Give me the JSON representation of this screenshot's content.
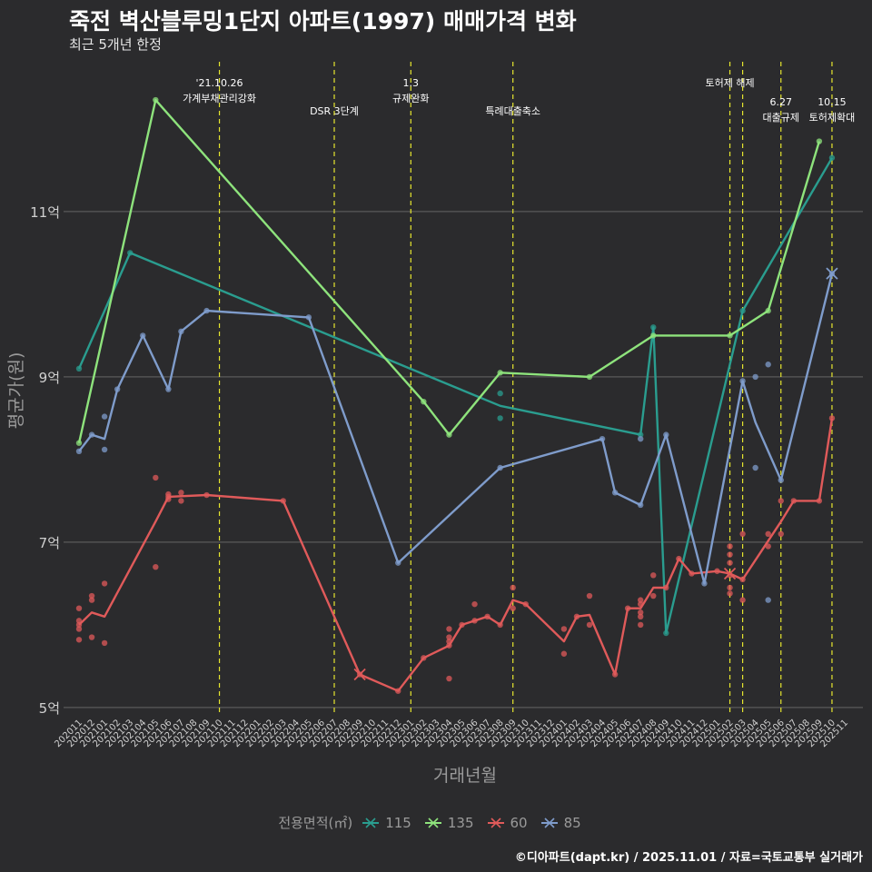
{
  "title": "죽전 벽산블루밍1단지 아파트(1997) 매매가격 변화",
  "subtitle": "최근 5개년 한정",
  "caption": "©디아파트(dapt.kr) / 2025.11.01 / 자료=국토교통부 실거래가",
  "chart_data": {
    "type": "line",
    "title": "죽전 벽산블루밍1단지 아파트(1997) 매매가격 변화",
    "xlabel": "거래년월",
    "ylabel": "평균가(원)",
    "x": [
      "202011",
      "202012",
      "202101",
      "202102",
      "202103",
      "202104",
      "202105",
      "202106",
      "202107",
      "202108",
      "202109",
      "202110",
      "202111",
      "202112",
      "202201",
      "202202",
      "202203",
      "202204",
      "202205",
      "202206",
      "202207",
      "202208",
      "202209",
      "202210",
      "202211",
      "202212",
      "202301",
      "202302",
      "202303",
      "202304",
      "202305",
      "202306",
      "202307",
      "202308",
      "202309",
      "202310",
      "202311",
      "202312",
      "202401",
      "202402",
      "202403",
      "202404",
      "202405",
      "202406",
      "202407",
      "202408",
      "202409",
      "202410",
      "202411",
      "202412",
      "202501",
      "202502",
      "202503",
      "202504",
      "202505",
      "202506",
      "202507",
      "202508",
      "202509",
      "202510",
      "202511"
    ],
    "ylim": [
      4.9,
      12.9
    ],
    "yticks": [
      5,
      7,
      9,
      11
    ],
    "ytick_labels": [
      "5억",
      "7억",
      "9억",
      "11억"
    ],
    "legend_title": "전용면적(㎡)",
    "series": [
      {
        "name": "115",
        "color": "#2a9d8f",
        "x": [
          "202011",
          "202103",
          "202308",
          "202407",
          "202408",
          "202409",
          "202503",
          "202510"
        ],
        "values": [
          9.1,
          10.5,
          8.65,
          8.3,
          9.6,
          5.9,
          9.8,
          11.65
        ],
        "points_x": [
          "202011",
          "202103",
          "202308",
          "202308",
          "202407",
          "202408",
          "202409",
          "202503",
          "202510"
        ],
        "points_y": [
          9.1,
          10.5,
          8.8,
          8.5,
          8.3,
          9.6,
          5.9,
          9.8,
          11.65
        ]
      },
      {
        "name": "135",
        "color": "#8ee37c",
        "x": [
          "202011",
          "202105",
          "202302",
          "202304",
          "202308",
          "202403",
          "202408",
          "202502",
          "202505",
          "202509"
        ],
        "values": [
          8.2,
          12.35,
          8.7,
          8.3,
          9.05,
          9.0,
          9.5,
          9.5,
          9.8,
          11.85
        ],
        "points_x": [
          "202011",
          "202105",
          "202302",
          "202304",
          "202308",
          "202403",
          "202408",
          "202502",
          "202505",
          "202509"
        ],
        "points_y": [
          8.2,
          12.35,
          8.7,
          8.3,
          9.05,
          9.0,
          9.5,
          9.5,
          9.8,
          11.85
        ]
      },
      {
        "name": "60",
        "color": "#e05a5a",
        "x": [
          "202011",
          "202012",
          "202101",
          "202105",
          "202106",
          "202109",
          "202203",
          "202209",
          "202212",
          "202302",
          "202304",
          "202305",
          "202307",
          "202308",
          "202309",
          "202310",
          "202401",
          "202402",
          "202403",
          "202405",
          "202406",
          "202407",
          "202408",
          "202409",
          "202410",
          "202411",
          "202501",
          "202502",
          "202503",
          "202506",
          "202507",
          "202509",
          "202510"
        ],
        "values": [
          6.0,
          6.15,
          6.1,
          7.25,
          7.55,
          7.57,
          7.5,
          5.4,
          5.2,
          5.6,
          5.75,
          6.0,
          6.1,
          6.0,
          6.3,
          6.25,
          5.8,
          6.1,
          6.12,
          5.4,
          6.2,
          6.2,
          6.45,
          6.45,
          6.8,
          6.62,
          6.65,
          6.62,
          6.55,
          7.25,
          7.5,
          7.5,
          8.5
        ],
        "points_x": [
          "202011",
          "202011",
          "202011",
          "202011",
          "202011",
          "202012",
          "202012",
          "202012",
          "202101",
          "202101",
          "202105",
          "202105",
          "202106",
          "202106",
          "202106",
          "202107",
          "202107",
          "202109",
          "202203",
          "202209",
          "202212",
          "202302",
          "202304",
          "202304",
          "202304",
          "202304",
          "202304",
          "202305",
          "202306",
          "202306",
          "202307",
          "202308",
          "202309",
          "202309",
          "202310",
          "202401",
          "202401",
          "202402",
          "202403",
          "202403",
          "202405",
          "202406",
          "202407",
          "202407",
          "202407",
          "202407",
          "202407",
          "202408",
          "202408",
          "202409",
          "202410",
          "202411",
          "202501",
          "202502",
          "202502",
          "202502",
          "202502",
          "202502",
          "202502",
          "202503",
          "202503",
          "202503",
          "202505",
          "202505",
          "202506",
          "202506",
          "202507",
          "202509",
          "202510"
        ],
        "points_y": [
          6.2,
          6.05,
          5.95,
          5.82,
          6.0,
          6.35,
          6.3,
          5.85,
          6.5,
          5.78,
          7.78,
          6.7,
          7.58,
          7.52,
          7.55,
          7.6,
          7.5,
          7.57,
          7.5,
          5.4,
          5.2,
          5.6,
          5.95,
          5.85,
          5.8,
          5.35,
          5.75,
          6.0,
          6.25,
          6.05,
          6.1,
          6.0,
          6.45,
          6.2,
          6.25,
          5.95,
          5.65,
          6.1,
          6.35,
          6.0,
          5.4,
          6.2,
          6.3,
          6.25,
          6.1,
          6.0,
          6.15,
          6.6,
          6.35,
          6.45,
          6.8,
          6.62,
          6.65,
          6.95,
          6.85,
          6.75,
          6.6,
          6.45,
          6.38,
          7.1,
          6.55,
          6.3,
          7.1,
          6.95,
          7.5,
          7.1,
          7.5,
          7.5,
          8.5
        ]
      },
      {
        "name": "85",
        "color": "#7f9ccb",
        "x": [
          "202011",
          "202012",
          "202101",
          "202102",
          "202104",
          "202106",
          "202107",
          "202109",
          "202205",
          "202212",
          "202308",
          "202404",
          "202405",
          "202407",
          "202409",
          "202412",
          "202503",
          "202504",
          "202506",
          "202510"
        ],
        "values": [
          8.1,
          8.3,
          8.25,
          8.85,
          9.5,
          8.85,
          9.55,
          9.8,
          9.72,
          6.75,
          7.9,
          8.25,
          7.6,
          7.45,
          8.3,
          6.5,
          8.95,
          8.45,
          7.75,
          10.25
        ],
        "points_x": [
          "202011",
          "202012",
          "202101",
          "202101",
          "202102",
          "202104",
          "202106",
          "202107",
          "202109",
          "202205",
          "202212",
          "202308",
          "202404",
          "202405",
          "202407",
          "202407",
          "202409",
          "202412",
          "202503",
          "202504",
          "202504",
          "202505",
          "202505",
          "202506",
          "202510"
        ],
        "points_y": [
          8.1,
          8.3,
          8.12,
          8.52,
          8.85,
          9.5,
          8.85,
          9.55,
          9.8,
          9.72,
          6.75,
          7.9,
          8.25,
          7.6,
          8.25,
          7.45,
          8.3,
          6.5,
          8.95,
          9.0,
          7.9,
          9.15,
          6.3,
          7.75,
          10.25
        ]
      }
    ],
    "cross_markers": [
      {
        "series": "60",
        "x": "202209",
        "y": 5.4
      },
      {
        "series": "60",
        "x": "202502",
        "y": 6.62
      },
      {
        "series": "85",
        "x": "202510",
        "y": 10.25
      }
    ],
    "annotations": [
      {
        "x": "202110",
        "lines": [
          "'21.10.26",
          "가계부채관리강화"
        ],
        "row": 0
      },
      {
        "x": "202207",
        "lines": [
          "DSR 3단계"
        ],
        "row": 1
      },
      {
        "x": "202301",
        "lines": [
          "1.3",
          "규제완화"
        ],
        "row": 0
      },
      {
        "x": "202309",
        "lines": [
          "특례대출축소"
        ],
        "row": 1
      },
      {
        "x": "202502",
        "lines": [
          "토허제 해제"
        ],
        "row": 0
      },
      {
        "x": "202503",
        "lines": [],
        "row": 0
      },
      {
        "x": "202506",
        "lines": [
          "6.27",
          "대출규제"
        ],
        "row": 2
      },
      {
        "x": "202510",
        "lines": [
          "10.15",
          "토허제확대"
        ],
        "row": 2
      }
    ]
  }
}
